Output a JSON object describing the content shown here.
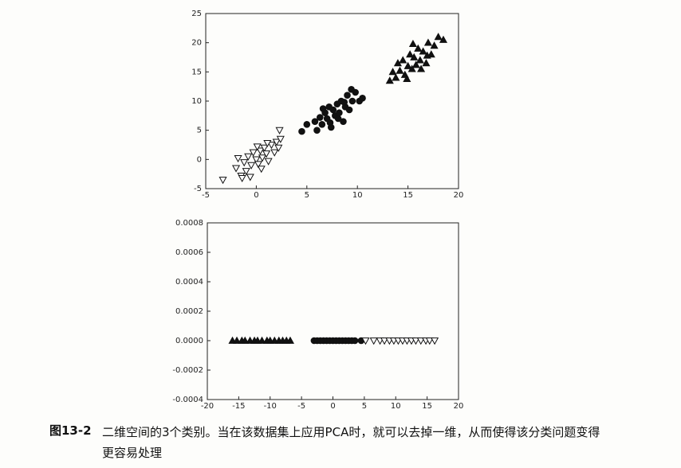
{
  "chart_data": [
    {
      "type": "scatter",
      "xlim": [
        -5,
        20
      ],
      "ylim": [
        -5,
        25
      ],
      "xticks": [
        -5,
        0,
        5,
        10,
        15,
        20
      ],
      "yticks": [
        -5,
        0,
        5,
        10,
        15,
        20,
        25
      ],
      "series": [
        {
          "marker": "triangle-down",
          "color": "#ffffff",
          "x": [
            -3.3,
            -2,
            -1.5,
            -1.2,
            -1,
            -0.8,
            -0.5,
            -0.3,
            0,
            0.2,
            0.4,
            0.6,
            0.8,
            1,
            1.2,
            1.5,
            1.8,
            2,
            2.2,
            2.4,
            2.3,
            -1.8,
            0.1,
            -0.6,
            1.1,
            -1.4,
            0.5
          ],
          "values": [
            -3.5,
            -1.5,
            -2.8,
            -0.5,
            -2,
            0.5,
            -1,
            1.2,
            0,
            -0.8,
            1.5,
            0.3,
            2,
            1,
            -0.3,
            2.5,
            1.2,
            3,
            2,
            3.5,
            5,
            0.2,
            2.2,
            -3,
            2.8,
            -3.2,
            -1.6
          ]
        },
        {
          "marker": "circle",
          "color": "#111111",
          "x": [
            4.5,
            5,
            5.8,
            6,
            6.3,
            6.5,
            6.8,
            7,
            7.2,
            7.4,
            7.6,
            7.8,
            8,
            8.2,
            8.4,
            8.6,
            8.8,
            9,
            9.2,
            9.5,
            9.8,
            10.2,
            10.5,
            6.6,
            7.3,
            8.1,
            8.7,
            9.4
          ],
          "values": [
            4.8,
            6,
            6.5,
            5,
            7.2,
            6,
            8,
            7,
            9,
            5.5,
            8.5,
            7.5,
            9.5,
            8,
            10,
            6.5,
            9,
            11,
            8.5,
            10,
            11.5,
            10,
            10.5,
            8.7,
            6.3,
            7,
            9.8,
            12
          ]
        },
        {
          "marker": "triangle-up",
          "color": "#111111",
          "x": [
            13.2,
            13.5,
            13.8,
            14,
            14.2,
            14.5,
            14.7,
            15,
            15.2,
            15.4,
            15.6,
            15.8,
            16,
            16.2,
            16.5,
            16.8,
            17,
            17.3,
            17.6,
            18,
            18.5,
            14.9,
            15.5,
            16.3,
            16.9
          ],
          "values": [
            13.5,
            15,
            14,
            16.5,
            15.2,
            17,
            14.5,
            16,
            18,
            15.5,
            17.5,
            16.2,
            19,
            17,
            18.5,
            16.5,
            20,
            18,
            19.5,
            21,
            20.5,
            13.8,
            19.8,
            15.5,
            17.8
          ]
        }
      ]
    },
    {
      "type": "scatter",
      "xlim": [
        -20,
        20
      ],
      "ylim": [
        -0.0004,
        0.0008
      ],
      "xticks": [
        -20,
        -15,
        -10,
        -5,
        0,
        5,
        10,
        15,
        20
      ],
      "yticks": [
        -0.0004,
        {
          "value": -0.0002,
          "label": "-0.0002"
        },
        {
          "value": 0,
          "label": "0.0000"
        },
        0.0002,
        0.0004,
        0.0006,
        0.0008
      ],
      "series": [
        {
          "marker": "triangle-up",
          "color": "#111111",
          "x": [
            -16,
            -15.3,
            -14.5,
            -14,
            -13.2,
            -12.5,
            -12,
            -11.3,
            -10.5,
            -10,
            -9.3,
            -8.6,
            -8,
            -7.4,
            -6.8
          ],
          "values": [
            0,
            0,
            0,
            0,
            0,
            0,
            0,
            0,
            0,
            0,
            0,
            0,
            0,
            0,
            0
          ]
        },
        {
          "marker": "circle",
          "color": "#111111",
          "x": [
            -3,
            -2.5,
            -2,
            -1.5,
            -1,
            -0.5,
            0,
            0.5,
            1,
            1.5,
            2,
            2.5,
            3,
            3.5,
            4.5
          ],
          "values": [
            0,
            0,
            0,
            0,
            0,
            0,
            0,
            0,
            0,
            0,
            0,
            0,
            0,
            0,
            0
          ]
        },
        {
          "marker": "triangle-down",
          "color": "#ffffff",
          "x": [
            5.2,
            6.5,
            7.5,
            8.2,
            9,
            9.7,
            10.4,
            11.1,
            11.8,
            12.5,
            13.2,
            14,
            14.8,
            15.4,
            16.2
          ],
          "values": [
            0,
            0,
            0,
            0,
            0,
            0,
            0,
            0,
            0,
            0,
            0,
            0,
            0,
            0,
            0
          ]
        }
      ]
    }
  ],
  "caption": {
    "label": "图13-2",
    "text": "二维空间的3个类别。当在该数据集上应用PCA时，就可以去掉一维，从而使得该分类问题变得更容易处理"
  }
}
